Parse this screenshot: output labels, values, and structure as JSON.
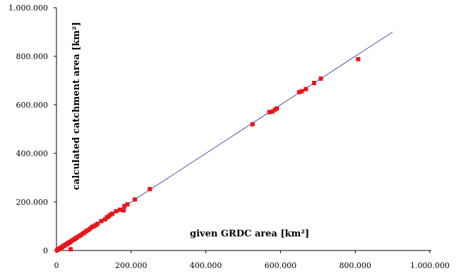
{
  "chart_data": {
    "type": "scatter",
    "xlabel": "given GRDC area [km²]",
    "ylabel": "calculated catchment area [km²]",
    "xlim": [
      0,
      1000000
    ],
    "ylim": [
      0,
      1000000
    ],
    "x_ticks": [
      0,
      200000,
      400000,
      600000,
      800000,
      1000000
    ],
    "y_ticks": [
      0,
      200000,
      400000,
      600000,
      800000,
      1000000
    ],
    "x_tick_labels": [
      "0",
      "200.000",
      "400.000",
      "600.000",
      "800.000",
      "1.000.000"
    ],
    "y_tick_labels": [
      "0",
      "200.000",
      "400.000",
      "600.000",
      "800.000",
      "1.000.000"
    ],
    "grid": false,
    "legend": "none",
    "series": [
      {
        "marker": "square",
        "color": "#e8151b",
        "points": [
          [
            2000,
            1500
          ],
          [
            4000,
            3500
          ],
          [
            6000,
            5500
          ],
          [
            8000,
            7000
          ],
          [
            10000,
            9500
          ],
          [
            12000,
            11500
          ],
          [
            15000,
            14000
          ],
          [
            18000,
            17000
          ],
          [
            20000,
            19500
          ],
          [
            22000,
            21500
          ],
          [
            25000,
            24000
          ],
          [
            28000,
            27000
          ],
          [
            30000,
            29000
          ],
          [
            33000,
            32000
          ],
          [
            36000,
            35000
          ],
          [
            40000,
            39000
          ],
          [
            45000,
            44000
          ],
          [
            48000,
            46000
          ],
          [
            52000,
            51000
          ],
          [
            55000,
            54000
          ],
          [
            60000,
            59000
          ],
          [
            65000,
            63000
          ],
          [
            70000,
            69000
          ],
          [
            75000,
            74000
          ],
          [
            80000,
            80000
          ],
          [
            85000,
            84000
          ],
          [
            90000,
            90000
          ],
          [
            95000,
            97000
          ],
          [
            100000,
            100000
          ],
          [
            105000,
            104000
          ],
          [
            110000,
            110000
          ],
          [
            120000,
            121000
          ],
          [
            130000,
            128000
          ],
          [
            135000,
            136000
          ],
          [
            140000,
            141000
          ],
          [
            145000,
            148000
          ],
          [
            150000,
            152000
          ],
          [
            160000,
            162000
          ],
          [
            170000,
            168000
          ],
          [
            180000,
            165000
          ],
          [
            182000,
            183000
          ],
          [
            190000,
            190000
          ],
          [
            210000,
            210000
          ],
          [
            250000,
            253000
          ],
          [
            38000,
            5000
          ],
          [
            525000,
            520000
          ],
          [
            570000,
            570000
          ],
          [
            578000,
            572000
          ],
          [
            585000,
            580000
          ],
          [
            590000,
            585000
          ],
          [
            650000,
            652000
          ],
          [
            657000,
            656000
          ],
          [
            668000,
            665000
          ],
          [
            690000,
            690000
          ],
          [
            708000,
            708000
          ],
          [
            808000,
            788000
          ]
        ]
      },
      {
        "type": "line",
        "color": "#3b3fa8",
        "points": [
          [
            0,
            0
          ],
          [
            900000,
            900000
          ]
        ]
      }
    ]
  }
}
